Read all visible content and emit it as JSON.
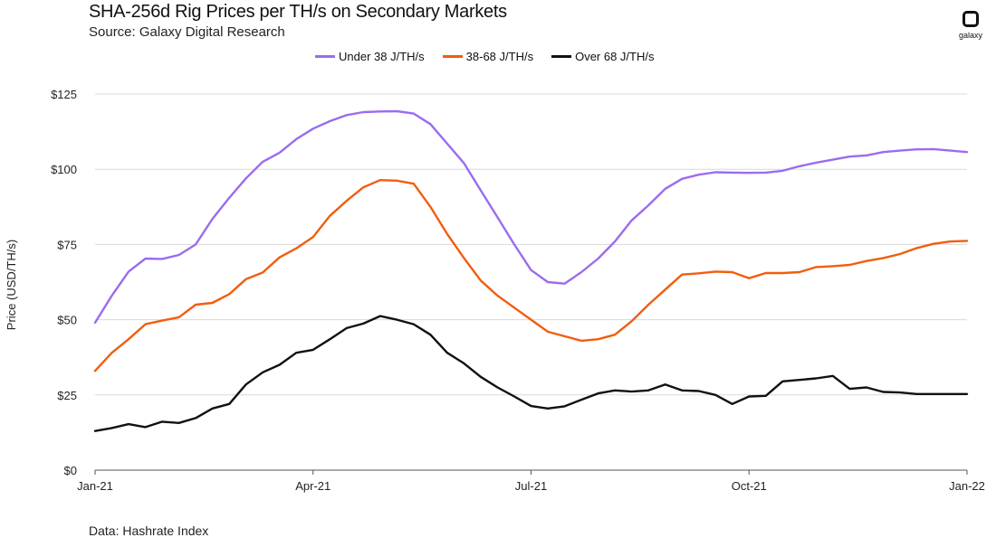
{
  "header": {
    "title": "SHA-256d Rig Prices per TH/s on Secondary Markets",
    "subtitle": "Source: Galaxy Digital Research"
  },
  "logo": {
    "text": "galaxy",
    "icon": "galaxy-logo-icon"
  },
  "footer": {
    "note": "Data: Hashrate Index"
  },
  "colors": {
    "purple": "#9a6cf0",
    "orange": "#f25d0f",
    "black": "#111111",
    "axis": "#555555",
    "grid": "#d9d9d9"
  },
  "chart_data": {
    "type": "line",
    "title": "SHA-256d Rig Prices per TH/s on Secondary Markets",
    "xlabel": "",
    "ylabel": "Price (USD/TH/s)",
    "ylim": [
      0,
      125
    ],
    "yticks": [
      0,
      25,
      50,
      75,
      100,
      125
    ],
    "ytick_labels": [
      "$0",
      "$25",
      "$50",
      "$75",
      "$100",
      "$125"
    ],
    "xlim": [
      0,
      52
    ],
    "xticks": [
      0,
      13,
      26,
      39,
      52
    ],
    "xtick_labels": [
      "Jan-21",
      "Apr-21",
      "Jul-21",
      "Oct-21",
      "Jan-22"
    ],
    "grid": true,
    "legend": "top-center",
    "series": [
      {
        "name": "Under 38 J/TH/s",
        "color": "#9a6cf0",
        "values": [
          49,
          58,
          66,
          70.3,
          70.2,
          71.5,
          75,
          83.5,
          90.5,
          97,
          102.5,
          105.5,
          110,
          113.5,
          116,
          118,
          119,
          119.2,
          119.3,
          118.5,
          115,
          108.5,
          102,
          93,
          84,
          75,
          66.5,
          62.5,
          62,
          65.8,
          70.3,
          76,
          83,
          88,
          93.5,
          96.8,
          98.2,
          99,
          98.9,
          98.8,
          98.9,
          99.5,
          101,
          102.2,
          103.2,
          104.2,
          104.6,
          105.7,
          106.2,
          106.6,
          106.7,
          106.2,
          105.7
        ]
      },
      {
        "name": "38-68 J/TH/s",
        "color": "#f25d0f",
        "values": [
          33,
          39,
          43.5,
          48.5,
          49.7,
          50.8,
          55,
          55.6,
          58.5,
          63.5,
          65.7,
          70.7,
          73.7,
          77.5,
          84.5,
          89.5,
          94,
          96.4,
          96.2,
          95.2,
          87.5,
          78.5,
          70.5,
          63,
          58,
          54,
          50,
          46,
          44.5,
          43,
          43.5,
          45,
          49.5,
          55,
          60,
          65,
          65.4,
          66,
          65.8,
          63.8,
          65.5,
          65.5,
          65.8,
          67.5,
          67.8,
          68.2,
          69.5,
          70.5,
          71.8,
          73.8,
          75.2,
          76,
          76.2
        ]
      },
      {
        "name": "Over 68 J/TH/s",
        "color": "#111111",
        "values": [
          13,
          14,
          15.3,
          14.3,
          16.1,
          15.7,
          17.3,
          20.5,
          22,
          28.5,
          32.5,
          35,
          39,
          40,
          43.5,
          47.2,
          48.7,
          51.2,
          50,
          48.5,
          45,
          39,
          35.5,
          31,
          27.5,
          24.5,
          21.3,
          20.5,
          21.2,
          23.4,
          25.5,
          26.5,
          26.1,
          26.5,
          28.5,
          26.5,
          26.3,
          25,
          22,
          24.5,
          24.7,
          29.5,
          30,
          30.5,
          31.3,
          27,
          27.5,
          26,
          25.8,
          25.3,
          25.3,
          25.3,
          25.3
        ]
      }
    ]
  }
}
